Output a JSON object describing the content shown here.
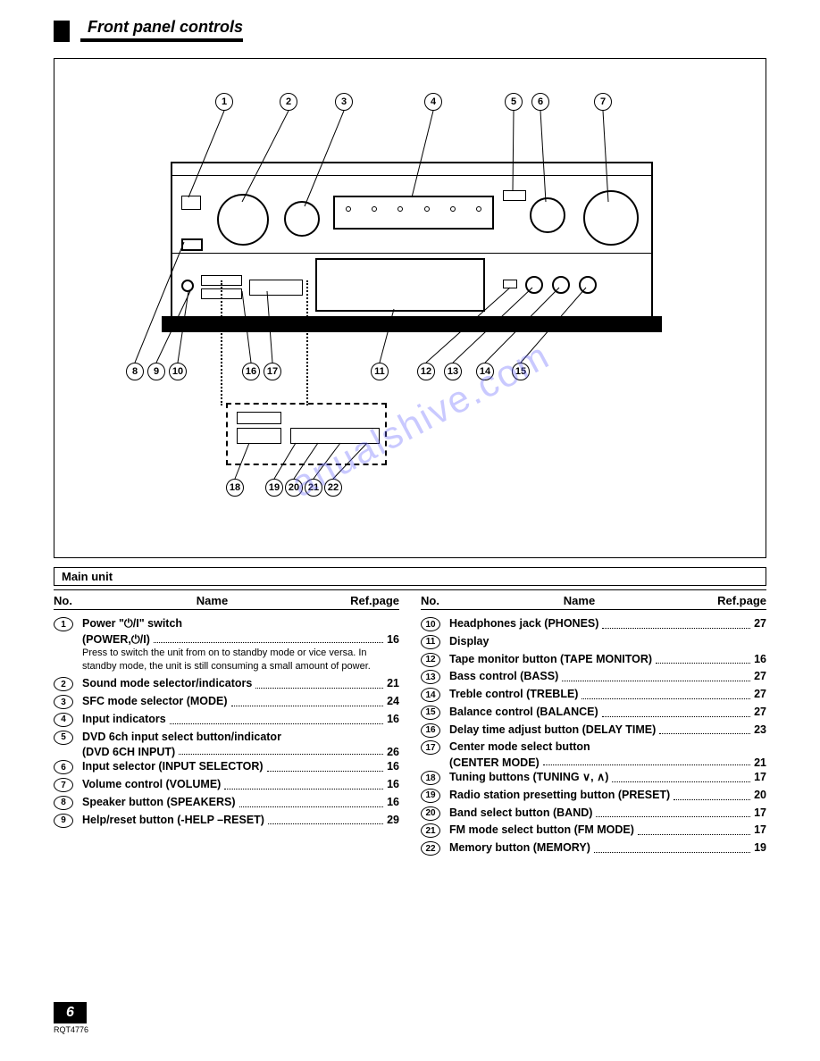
{
  "header": {
    "title": "Front panel controls"
  },
  "section_label": "Main unit",
  "table_headers": {
    "no": "No.",
    "name": "Name",
    "ref": "Ref.page"
  },
  "callouts_top": [
    "1",
    "2",
    "3",
    "4",
    "5",
    "6",
    "7"
  ],
  "callouts_left": [
    "8",
    "9",
    "10"
  ],
  "callouts_mid": [
    "16",
    "17",
    "11",
    "12",
    "13",
    "14",
    "15"
  ],
  "callouts_detail": [
    "18",
    "19",
    "20",
    "21",
    "22"
  ],
  "watermark": "anualshive.com",
  "left_entries": [
    {
      "num": "1",
      "name": "Power \"⏻/I\" switch",
      "sub": "(POWER,⏻/I)",
      "page": "16",
      "note": "Press to switch the unit from on to standby mode or vice versa. In standby mode, the unit is still consuming a small amount of power."
    },
    {
      "num": "2",
      "name": "Sound mode selector/indicators",
      "page": "21"
    },
    {
      "num": "3",
      "name": "SFC mode selector (MODE)",
      "page": "24"
    },
    {
      "num": "4",
      "name": "Input indicators",
      "page": "16"
    },
    {
      "num": "5",
      "name": "DVD 6ch input select button/indicator",
      "sub": "(DVD 6CH INPUT)",
      "page": "26"
    },
    {
      "num": "6",
      "name": "Input selector (INPUT SELECTOR)",
      "page": "16"
    },
    {
      "num": "7",
      "name": "Volume control (VOLUME)",
      "page": "16"
    },
    {
      "num": "8",
      "name": "Speaker button (SPEAKERS)",
      "page": "16"
    },
    {
      "num": "9",
      "name": "Help/reset button (-HELP –RESET)",
      "page": "29"
    }
  ],
  "right_entries": [
    {
      "num": "10",
      "name": "Headphones jack (PHONES)",
      "page": "27"
    },
    {
      "num": "11",
      "name": "Display",
      "page": ""
    },
    {
      "num": "12",
      "name": "Tape monitor button (TAPE MONITOR)",
      "page": "16"
    },
    {
      "num": "13",
      "name": "Bass control (BASS)",
      "page": "27"
    },
    {
      "num": "14",
      "name": "Treble control (TREBLE)",
      "page": "27"
    },
    {
      "num": "15",
      "name": "Balance control (BALANCE)",
      "page": "27"
    },
    {
      "num": "16",
      "name": "Delay time adjust button (DELAY TIME)",
      "page": "23"
    },
    {
      "num": "17",
      "name": "Center mode select button",
      "sub": "(CENTER MODE)",
      "page": "21"
    },
    {
      "num": "18",
      "name": "Tuning buttons (TUNING ∨, ∧)",
      "page": "17"
    },
    {
      "num": "19",
      "name": "Radio station presetting button (PRESET)",
      "page": "20"
    },
    {
      "num": "20",
      "name": "Band select button (BAND)",
      "page": "17"
    },
    {
      "num": "21",
      "name": "FM mode select button (FM MODE)",
      "page": "17"
    },
    {
      "num": "22",
      "name": "Memory button (MEMORY)",
      "page": "19"
    }
  ],
  "footer": {
    "page": "6",
    "code": "RQT4776"
  }
}
